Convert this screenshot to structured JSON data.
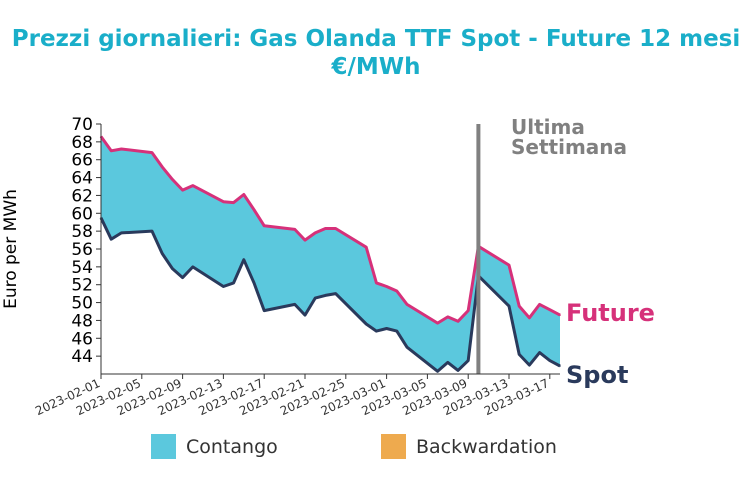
{
  "chart_data": {
    "type": "area",
    "title_lines": [
      "Prezzi giornalieri: Gas Olanda TTF Spot - Future 12 mesi",
      "€/MWh"
    ],
    "xlabel": "",
    "ylabel": "Euro per MWh",
    "ylim": [
      42,
      70
    ],
    "yticks": [
      "44",
      "46",
      "48",
      "50",
      "52",
      "54",
      "56",
      "58",
      "60",
      "62",
      "64",
      "66",
      "68",
      "70"
    ],
    "xticks": [
      "2023-02-01",
      "2023-02-05",
      "2023-02-09",
      "2023-02-13",
      "2023-02-17",
      "2023-02-21",
      "2023-02-25",
      "2023-03-01",
      "2023-03-05",
      "2023-03-09",
      "2023-03-13",
      "2023-03-17"
    ],
    "x": [
      "2023-02-01",
      "2023-02-02",
      "2023-02-03",
      "2023-02-06",
      "2023-02-07",
      "2023-02-08",
      "2023-02-09",
      "2023-02-10",
      "2023-02-13",
      "2023-02-14",
      "2023-02-15",
      "2023-02-16",
      "2023-02-17",
      "2023-02-20",
      "2023-02-21",
      "2023-02-22",
      "2023-02-23",
      "2023-02-24",
      "2023-02-27",
      "2023-02-28",
      "2023-03-01",
      "2023-03-02",
      "2023-03-03",
      "2023-03-06",
      "2023-03-07",
      "2023-03-08",
      "2023-03-09",
      "2023-03-10",
      "2023-03-13",
      "2023-03-14",
      "2023-03-15",
      "2023-03-16",
      "2023-03-17",
      "2023-03-18"
    ],
    "series": [
      {
        "name": "Future",
        "color": "#d6317a",
        "values": [
          68.6,
          67.0,
          67.2,
          66.8,
          65.2,
          63.8,
          62.6,
          63.1,
          61.3,
          61.2,
          62.1,
          60.4,
          58.6,
          58.2,
          57.0,
          57.8,
          58.3,
          58.3,
          56.2,
          52.2,
          51.8,
          51.3,
          49.8,
          47.7,
          48.4,
          47.9,
          49.1,
          56.3,
          54.2,
          49.6,
          48.3,
          49.8,
          49.2,
          48.6
        ],
        "color_label": "#d6317a"
      },
      {
        "name": "Spot",
        "color": "#2a3a5c",
        "values": [
          59.5,
          57.1,
          57.8,
          58.0,
          55.5,
          53.8,
          52.8,
          54.0,
          51.8,
          52.2,
          54.8,
          52.2,
          49.1,
          49.8,
          48.6,
          50.5,
          50.8,
          51.0,
          47.6,
          46.8,
          47.1,
          46.8,
          45.0,
          42.3,
          43.3,
          42.4,
          43.5,
          53.0,
          49.6,
          44.2,
          43.0,
          44.4,
          43.5,
          42.9
        ]
      }
    ],
    "vline_date": "2023-03-10",
    "annotations": [
      "Ultima",
      "Settimana"
    ],
    "end_labels": {
      "future": "Future",
      "spot": "Spot"
    },
    "legend": [
      {
        "label": "Contango",
        "color": "#5bc8dd"
      },
      {
        "label": "Backwardation",
        "color": "#eeaa4e"
      }
    ],
    "legend_position": "bottom-center",
    "colors": {
      "title": "#1aaec9",
      "contango": "#5bc8dd",
      "backwardation": "#eeaa4e",
      "vline": "#808080",
      "axis": "#333333"
    },
    "grid": false
  }
}
